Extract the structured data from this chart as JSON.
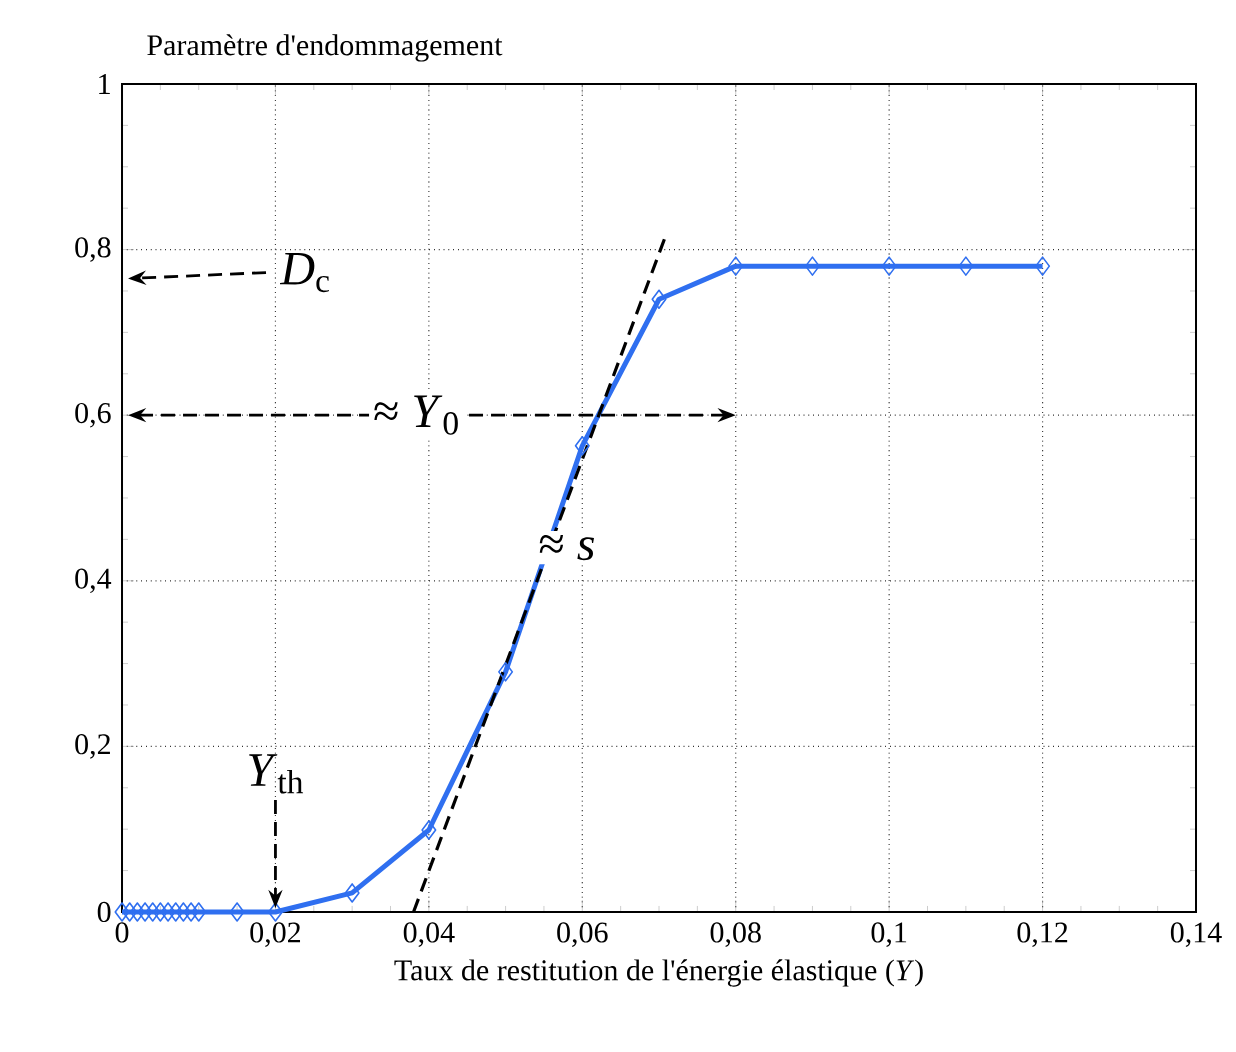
{
  "chart_data": {
    "type": "line",
    "ylabel": "Paramètre d'endommagement",
    "xlabel": "Taux de restitution de l'énergie élastique (*Y*)",
    "xlim": [
      0,
      0.14
    ],
    "ylim": [
      0,
      1
    ],
    "xticks": [
      0,
      {
        "value": 0.02,
        "label": "0,02"
      },
      {
        "value": 0.04,
        "label": "0,04"
      },
      {
        "value": 0.06,
        "label": "0,06"
      },
      {
        "value": 0.08,
        "label": "0,08"
      },
      {
        "value": 0.1,
        "label": "0,1"
      },
      {
        "value": 0.12,
        "label": "0,12"
      },
      {
        "value": 0.14,
        "label": "0,14"
      }
    ],
    "yticks": [
      0,
      {
        "value": 0.2,
        "label": "0,2"
      },
      {
        "value": 0.4,
        "label": "0,4"
      },
      {
        "value": 0.6,
        "label": "0,6"
      },
      {
        "value": 0.8,
        "label": "0,8"
      },
      1
    ],
    "grid": true,
    "series": [
      {
        "color": "#2f6ff0",
        "marker": "diamond",
        "line_style": "solid",
        "x": [
          0,
          0.001,
          0.002,
          0.003,
          0.004,
          0.005,
          0.006,
          0.007,
          0.008,
          0.009,
          0.01,
          0.015,
          0.02,
          0.03,
          0.04,
          0.05,
          0.06,
          0.07,
          0.08,
          0.09,
          0.1,
          0.11,
          0.12
        ],
        "values": [
          0,
          0,
          0,
          0,
          0,
          0,
          0,
          0,
          0,
          0,
          0,
          0,
          0,
          0.023,
          0.099,
          0.29,
          0.563,
          0.74,
          0.78,
          0.78,
          0.78,
          0.78,
          0.78
        ]
      },
      {
        "type": "line",
        "color": "#000000",
        "marker": "none",
        "line_style": "dashed",
        "x": [
          0.038,
          0.071
        ],
        "values": [
          0,
          0.82
        ]
      }
    ],
    "annotations": [
      "*D*$_{c}$",
      "≈ *Y*$_{0}$",
      {
        "text": "≈ *s*",
        "x": 0.058,
        "y": 0.44
      },
      {
        "text": "*Y*$_{th}$",
        "x": 0.02,
        "y": 0
      }
    ]
  }
}
